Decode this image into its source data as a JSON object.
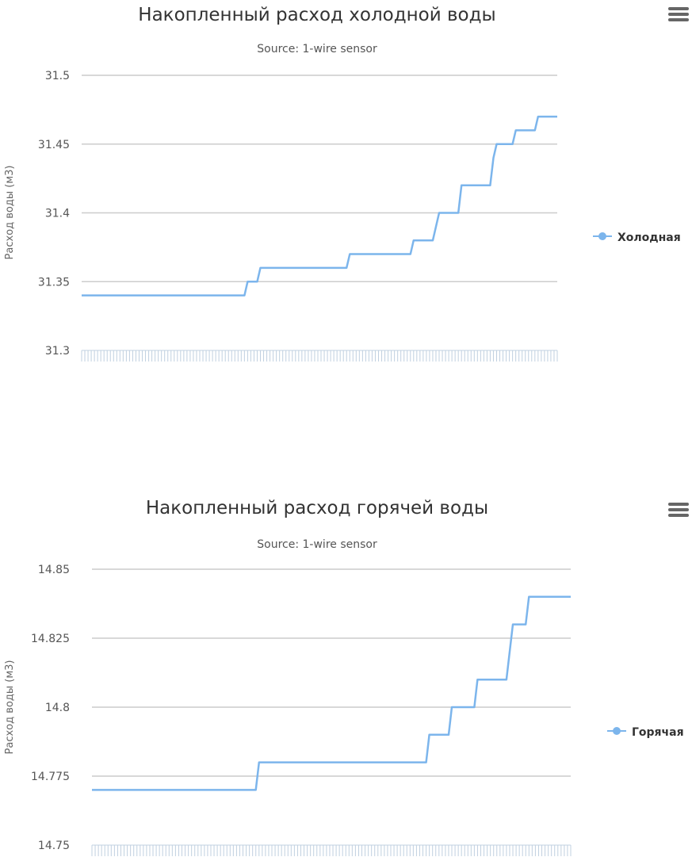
{
  "chart_data": [
    {
      "type": "line",
      "title": "Накопленный расход холодной воды",
      "subtitle": "Source: 1-wire sensor",
      "xlabel": "",
      "ylabel": "Расход воды (м3)",
      "ylim": [
        31.3,
        31.5
      ],
      "yticks": [
        "31.5",
        "31.45",
        "31.4",
        "31.35",
        "31.3"
      ],
      "grid": true,
      "legend_position": "right",
      "color": "#7cb5ec",
      "series": [
        {
          "name": "Холодная",
          "points": [
            [
              0,
              31.34
            ],
            [
              51,
              31.34
            ],
            [
              52,
              31.35
            ],
            [
              55,
              31.35
            ],
            [
              56,
              31.36
            ],
            [
              83,
              31.36
            ],
            [
              84,
              31.37
            ],
            [
              103,
              31.37
            ],
            [
              104,
              31.38
            ],
            [
              110,
              31.38
            ],
            [
              112,
              31.4
            ],
            [
              118,
              31.4
            ],
            [
              119,
              31.42
            ],
            [
              128,
              31.42
            ],
            [
              129,
              31.44
            ],
            [
              130,
              31.45
            ],
            [
              135,
              31.45
            ],
            [
              136,
              31.46
            ],
            [
              142,
              31.46
            ],
            [
              143,
              31.47
            ],
            [
              149,
              31.47
            ]
          ]
        }
      ]
    },
    {
      "type": "line",
      "title": "Накопленный расход горячей воды",
      "subtitle": "Source: 1-wire sensor",
      "xlabel": "",
      "ylabel": "Расход воды (м3)",
      "ylim": [
        14.75,
        14.85
      ],
      "yticks": [
        "14.85",
        "14.825",
        "14.8",
        "14.775",
        "14.75"
      ],
      "grid": true,
      "legend_position": "right",
      "color": "#7cb5ec",
      "series": [
        {
          "name": "Горячая",
          "points": [
            [
              0,
              14.77
            ],
            [
              51,
              14.77
            ],
            [
              52,
              14.78
            ],
            [
              104,
              14.78
            ],
            [
              105,
              14.79
            ],
            [
              111,
              14.79
            ],
            [
              112,
              14.8
            ],
            [
              119,
              14.8
            ],
            [
              120,
              14.81
            ],
            [
              129,
              14.81
            ],
            [
              131,
              14.83
            ],
            [
              135,
              14.83
            ],
            [
              136,
              14.84
            ],
            [
              149,
              14.84
            ]
          ]
        }
      ]
    }
  ],
  "menu_icon": "hamburger-menu-icon"
}
